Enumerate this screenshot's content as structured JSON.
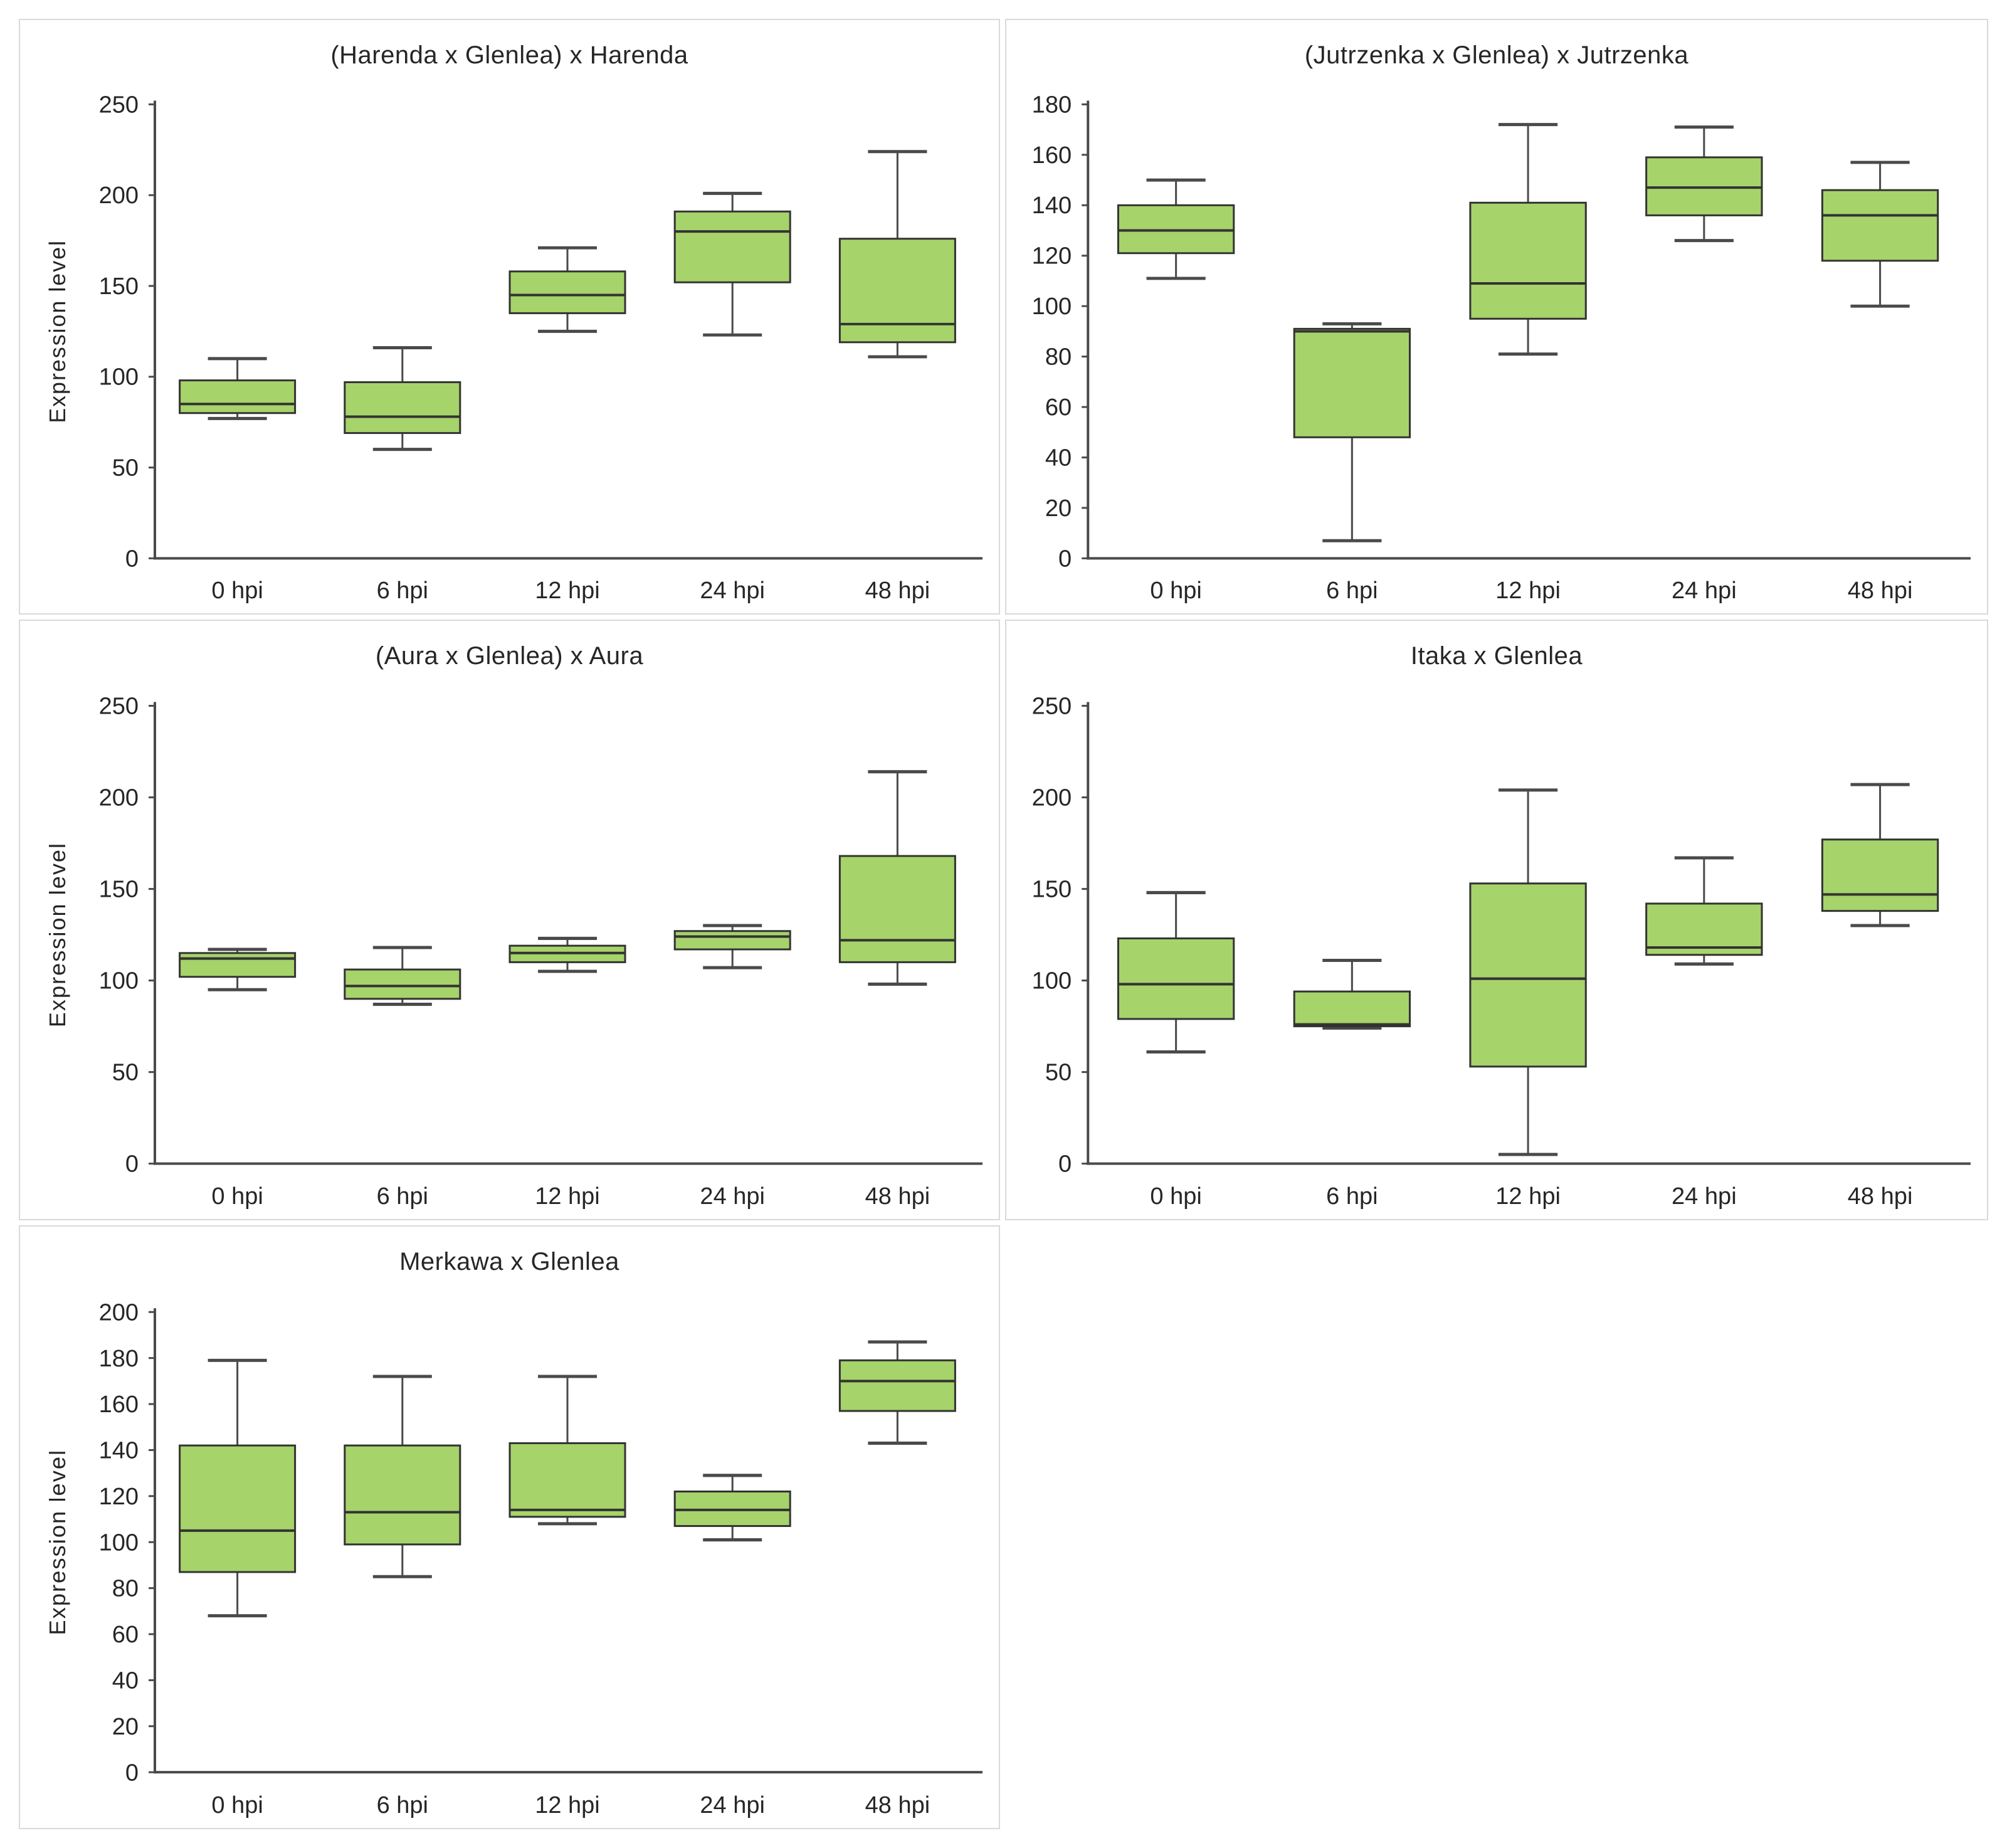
{
  "page": {
    "background": "#ffffff"
  },
  "style": {
    "box_fill": "#A6D36A",
    "box_stroke": "#333333",
    "median_color": "#333333",
    "whisker_color": "#4A4A4A",
    "axis_color": "#4A4A4A",
    "text_color": "#262626",
    "panel_border": "#D9D9D9"
  },
  "chart_data": [
    {
      "type": "box",
      "title": "(Harenda x Glenlea) x Harenda",
      "xlabel": "",
      "ylabel": "Expression level",
      "ylim": [
        0,
        250
      ],
      "ytick_step": 50,
      "grid": false,
      "legend": "none",
      "categories": [
        "0 hpi",
        "6 hpi",
        "12 hpi",
        "24 hpi",
        "48 hpi"
      ],
      "boxes": [
        {
          "low": 77,
          "q1": 80,
          "median": 85,
          "q3": 98,
          "high": 110
        },
        {
          "low": 60,
          "q1": 69,
          "median": 78,
          "q3": 97,
          "high": 116
        },
        {
          "low": 125,
          "q1": 135,
          "median": 145,
          "q3": 158,
          "high": 171
        },
        {
          "low": 123,
          "q1": 152,
          "median": 180,
          "q3": 191,
          "high": 201
        },
        {
          "low": 111,
          "q1": 119,
          "median": 129,
          "q3": 176,
          "high": 224
        }
      ]
    },
    {
      "type": "box",
      "title": "(Jutrzenka x Glenlea) x Jutrzenka",
      "xlabel": "",
      "ylabel": "",
      "ylim": [
        0,
        180
      ],
      "ytick_step": 20,
      "grid": false,
      "legend": "none",
      "categories": [
        "0 hpi",
        "6 hpi",
        "12 hpi",
        "24 hpi",
        "48 hpi"
      ],
      "boxes": [
        {
          "low": 111,
          "q1": 121,
          "median": 130,
          "q3": 140,
          "high": 150
        },
        {
          "low": 7,
          "q1": 48,
          "median": 90,
          "q3": 91,
          "high": 93
        },
        {
          "low": 81,
          "q1": 95,
          "median": 109,
          "q3": 141,
          "high": 172
        },
        {
          "low": 126,
          "q1": 136,
          "median": 147,
          "q3": 159,
          "high": 171
        },
        {
          "low": 100,
          "q1": 118,
          "median": 136,
          "q3": 146,
          "high": 157
        }
      ]
    },
    {
      "type": "box",
      "title": "(Aura x Glenlea) x Aura",
      "xlabel": "",
      "ylabel": "Expression level",
      "ylim": [
        0,
        250
      ],
      "ytick_step": 50,
      "grid": false,
      "legend": "none",
      "categories": [
        "0 hpi",
        "6 hpi",
        "12 hpi",
        "24 hpi",
        "48 hpi"
      ],
      "boxes": [
        {
          "low": 95,
          "q1": 102,
          "median": 112,
          "q3": 115,
          "high": 117
        },
        {
          "low": 87,
          "q1": 90,
          "median": 97,
          "q3": 106,
          "high": 118
        },
        {
          "low": 105,
          "q1": 110,
          "median": 115,
          "q3": 119,
          "high": 123
        },
        {
          "low": 107,
          "q1": 117,
          "median": 124,
          "q3": 127,
          "high": 130
        },
        {
          "low": 98,
          "q1": 110,
          "median": 122,
          "q3": 168,
          "high": 214
        }
      ]
    },
    {
      "type": "box",
      "title": "Itaka x Glenlea",
      "xlabel": "",
      "ylabel": "",
      "ylim": [
        0,
        250
      ],
      "ytick_step": 50,
      "grid": false,
      "legend": "none",
      "categories": [
        "0 hpi",
        "6 hpi",
        "12 hpi",
        "24 hpi",
        "48 hpi"
      ],
      "boxes": [
        {
          "low": 61,
          "q1": 79,
          "median": 98,
          "q3": 123,
          "high": 148
        },
        {
          "low": 74,
          "q1": 75,
          "median": 76,
          "q3": 94,
          "high": 111
        },
        {
          "low": 5,
          "q1": 53,
          "median": 101,
          "q3": 153,
          "high": 204
        },
        {
          "low": 109,
          "q1": 114,
          "median": 118,
          "q3": 142,
          "high": 167
        },
        {
          "low": 130,
          "q1": 138,
          "median": 147,
          "q3": 177,
          "high": 207
        }
      ]
    },
    {
      "type": "box",
      "title": "Merkawa x Glenlea",
      "xlabel": "",
      "ylabel": "Expression level",
      "ylim": [
        0,
        200
      ],
      "ytick_step": 20,
      "grid": false,
      "legend": "none",
      "categories": [
        "0 hpi",
        "6 hpi",
        "12 hpi",
        "24 hpi",
        "48 hpi"
      ],
      "boxes": [
        {
          "low": 68,
          "q1": 87,
          "median": 105,
          "q3": 142,
          "high": 179
        },
        {
          "low": 85,
          "q1": 99,
          "median": 113,
          "q3": 142,
          "high": 172
        },
        {
          "low": 108,
          "q1": 111,
          "median": 114,
          "q3": 143,
          "high": 172
        },
        {
          "low": 101,
          "q1": 107,
          "median": 114,
          "q3": 122,
          "high": 129
        },
        {
          "low": 143,
          "q1": 157,
          "median": 170,
          "q3": 179,
          "high": 187
        }
      ]
    }
  ]
}
